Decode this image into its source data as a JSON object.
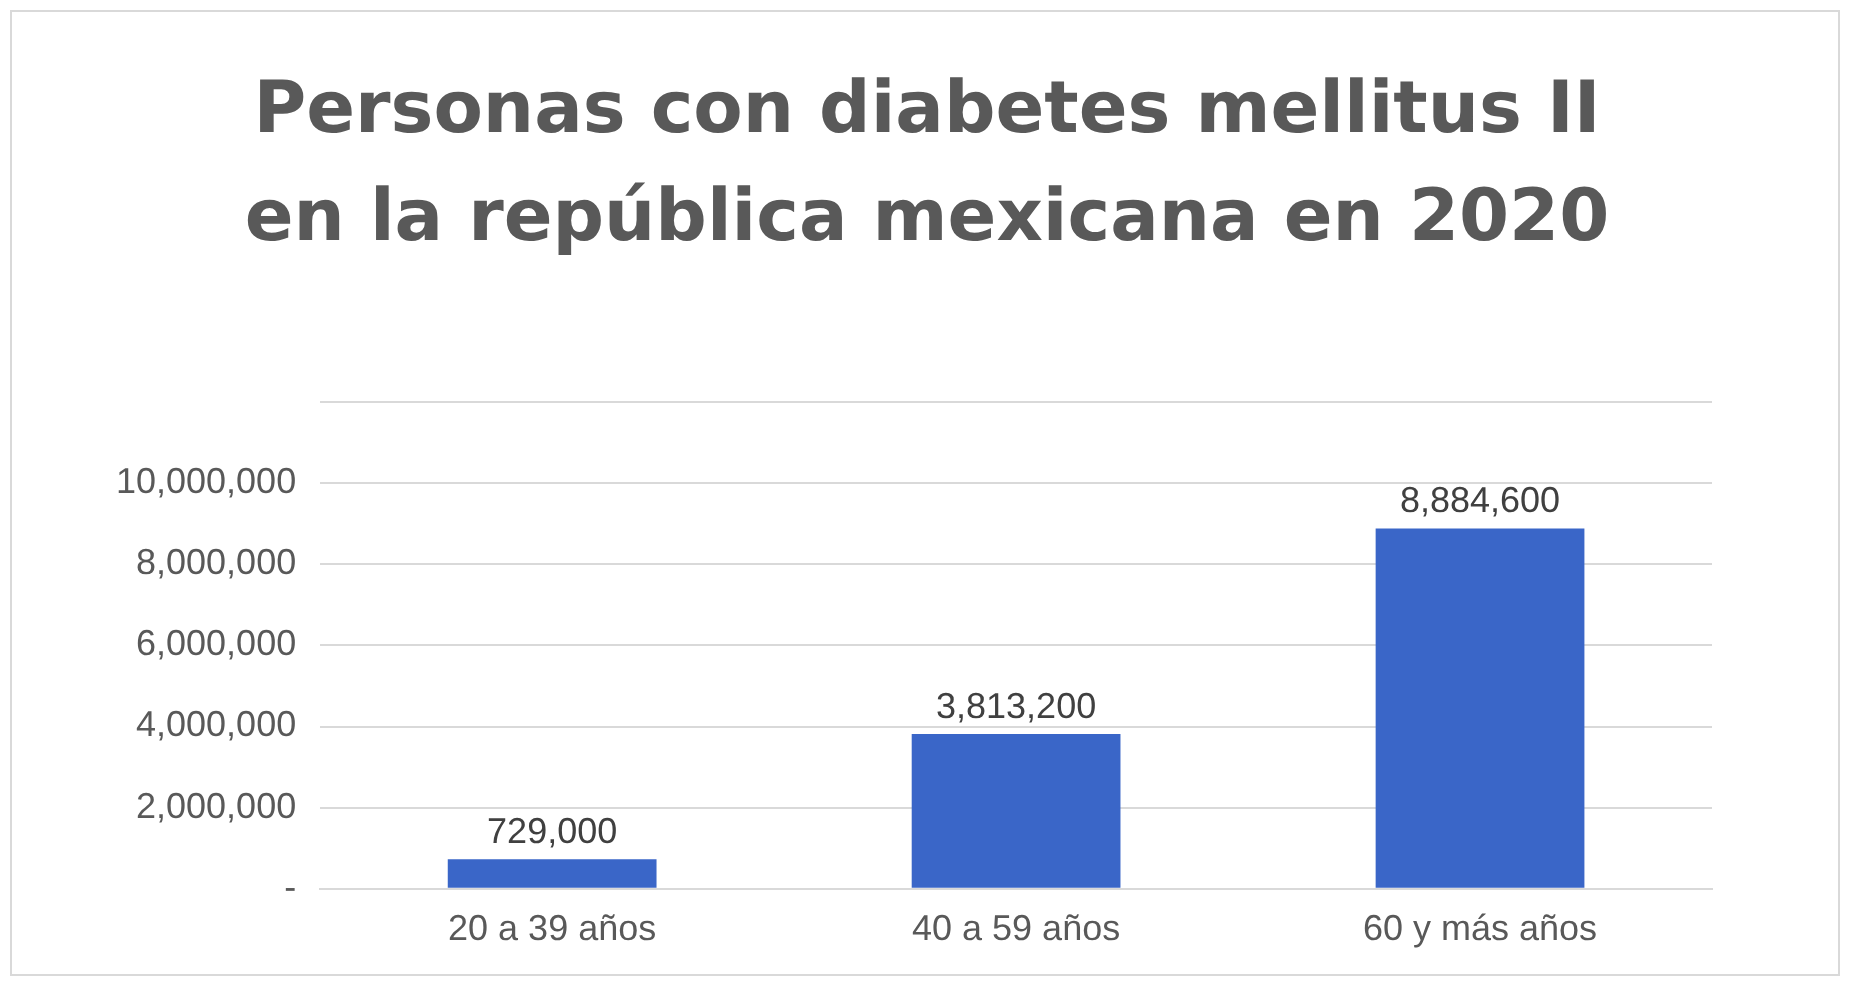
{
  "chart_data": {
    "type": "bar",
    "title": "Personas con diabetes mellitus II en la república mexicana en 2020",
    "categories": [
      "20 a 39 años",
      "40 a 59 años",
      "60 y más años"
    ],
    "values": [
      729000,
      3813200,
      8884600
    ],
    "value_labels": [
      "729,000",
      "3,813,200",
      "8,884,600"
    ],
    "color": "#3a66c8",
    "ylim": [
      0,
      12000000
    ],
    "yticks": [
      {
        "value": 0,
        "label": "-"
      },
      {
        "value": 2000000,
        "label": "2,000,000"
      },
      {
        "value": 4000000,
        "label": "4,000,000"
      },
      {
        "value": 6000000,
        "label": "6,000,000"
      },
      {
        "value": 8000000,
        "label": "8,000,000"
      },
      {
        "value": 10000000,
        "label": "10,000,000"
      },
      {
        "value": 12000000,
        "label": null
      }
    ],
    "grid": "y",
    "legend": false
  }
}
